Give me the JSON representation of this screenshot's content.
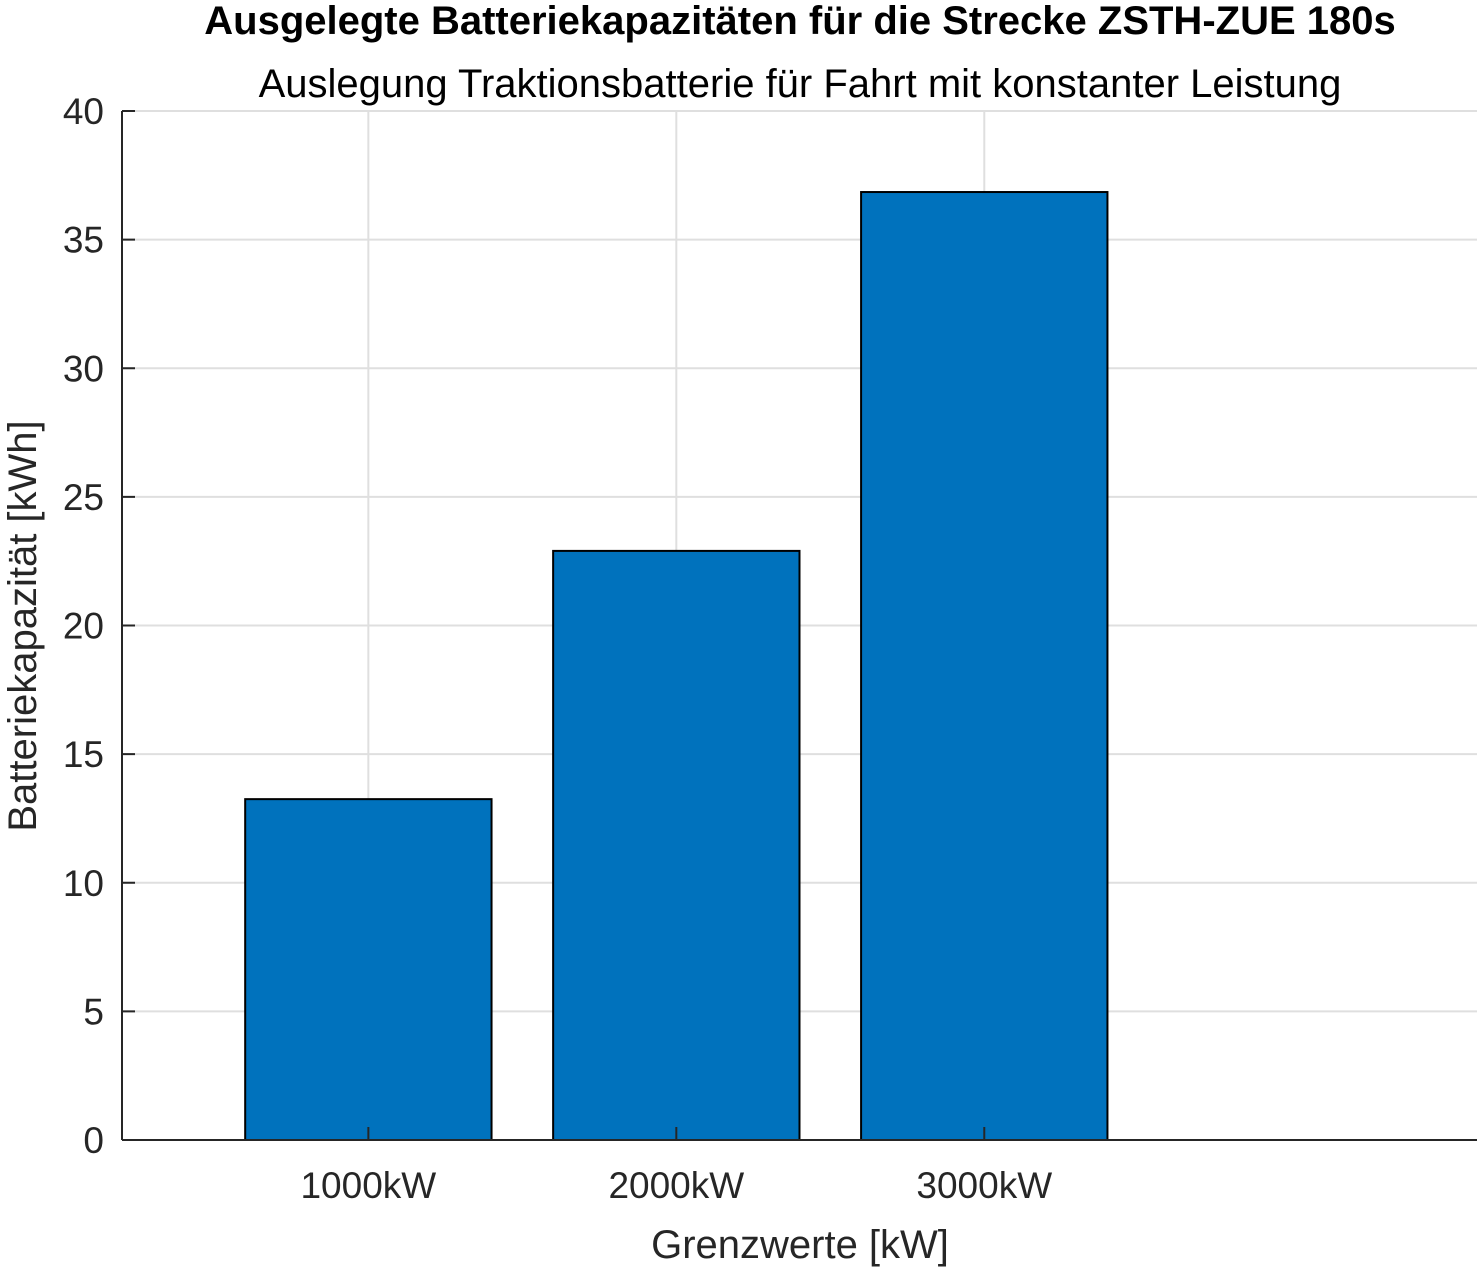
{
  "chart_data": {
    "type": "bar",
    "title": "Ausgelegte Batteriekapazitäten für die Strecke ZSTH-ZUE 180s",
    "subtitle": "Auslegung Traktionsbatterie für Fahrt mit konstanter Leistung",
    "xlabel": "Grenzwerte [kW]",
    "ylabel": "Batteriekapazität [kWh]",
    "categories": [
      "1000kW",
      "2000kW",
      "3000kW"
    ],
    "values": [
      13.25,
      22.9,
      36.85
    ],
    "ylim": [
      0,
      40
    ],
    "yticks": [
      0,
      5,
      10,
      15,
      20,
      25,
      30,
      35,
      40
    ],
    "xlim": [
      0.2,
      4.6
    ],
    "grid": true,
    "bar_color": "#0072bd",
    "edge_color": "#000000"
  }
}
